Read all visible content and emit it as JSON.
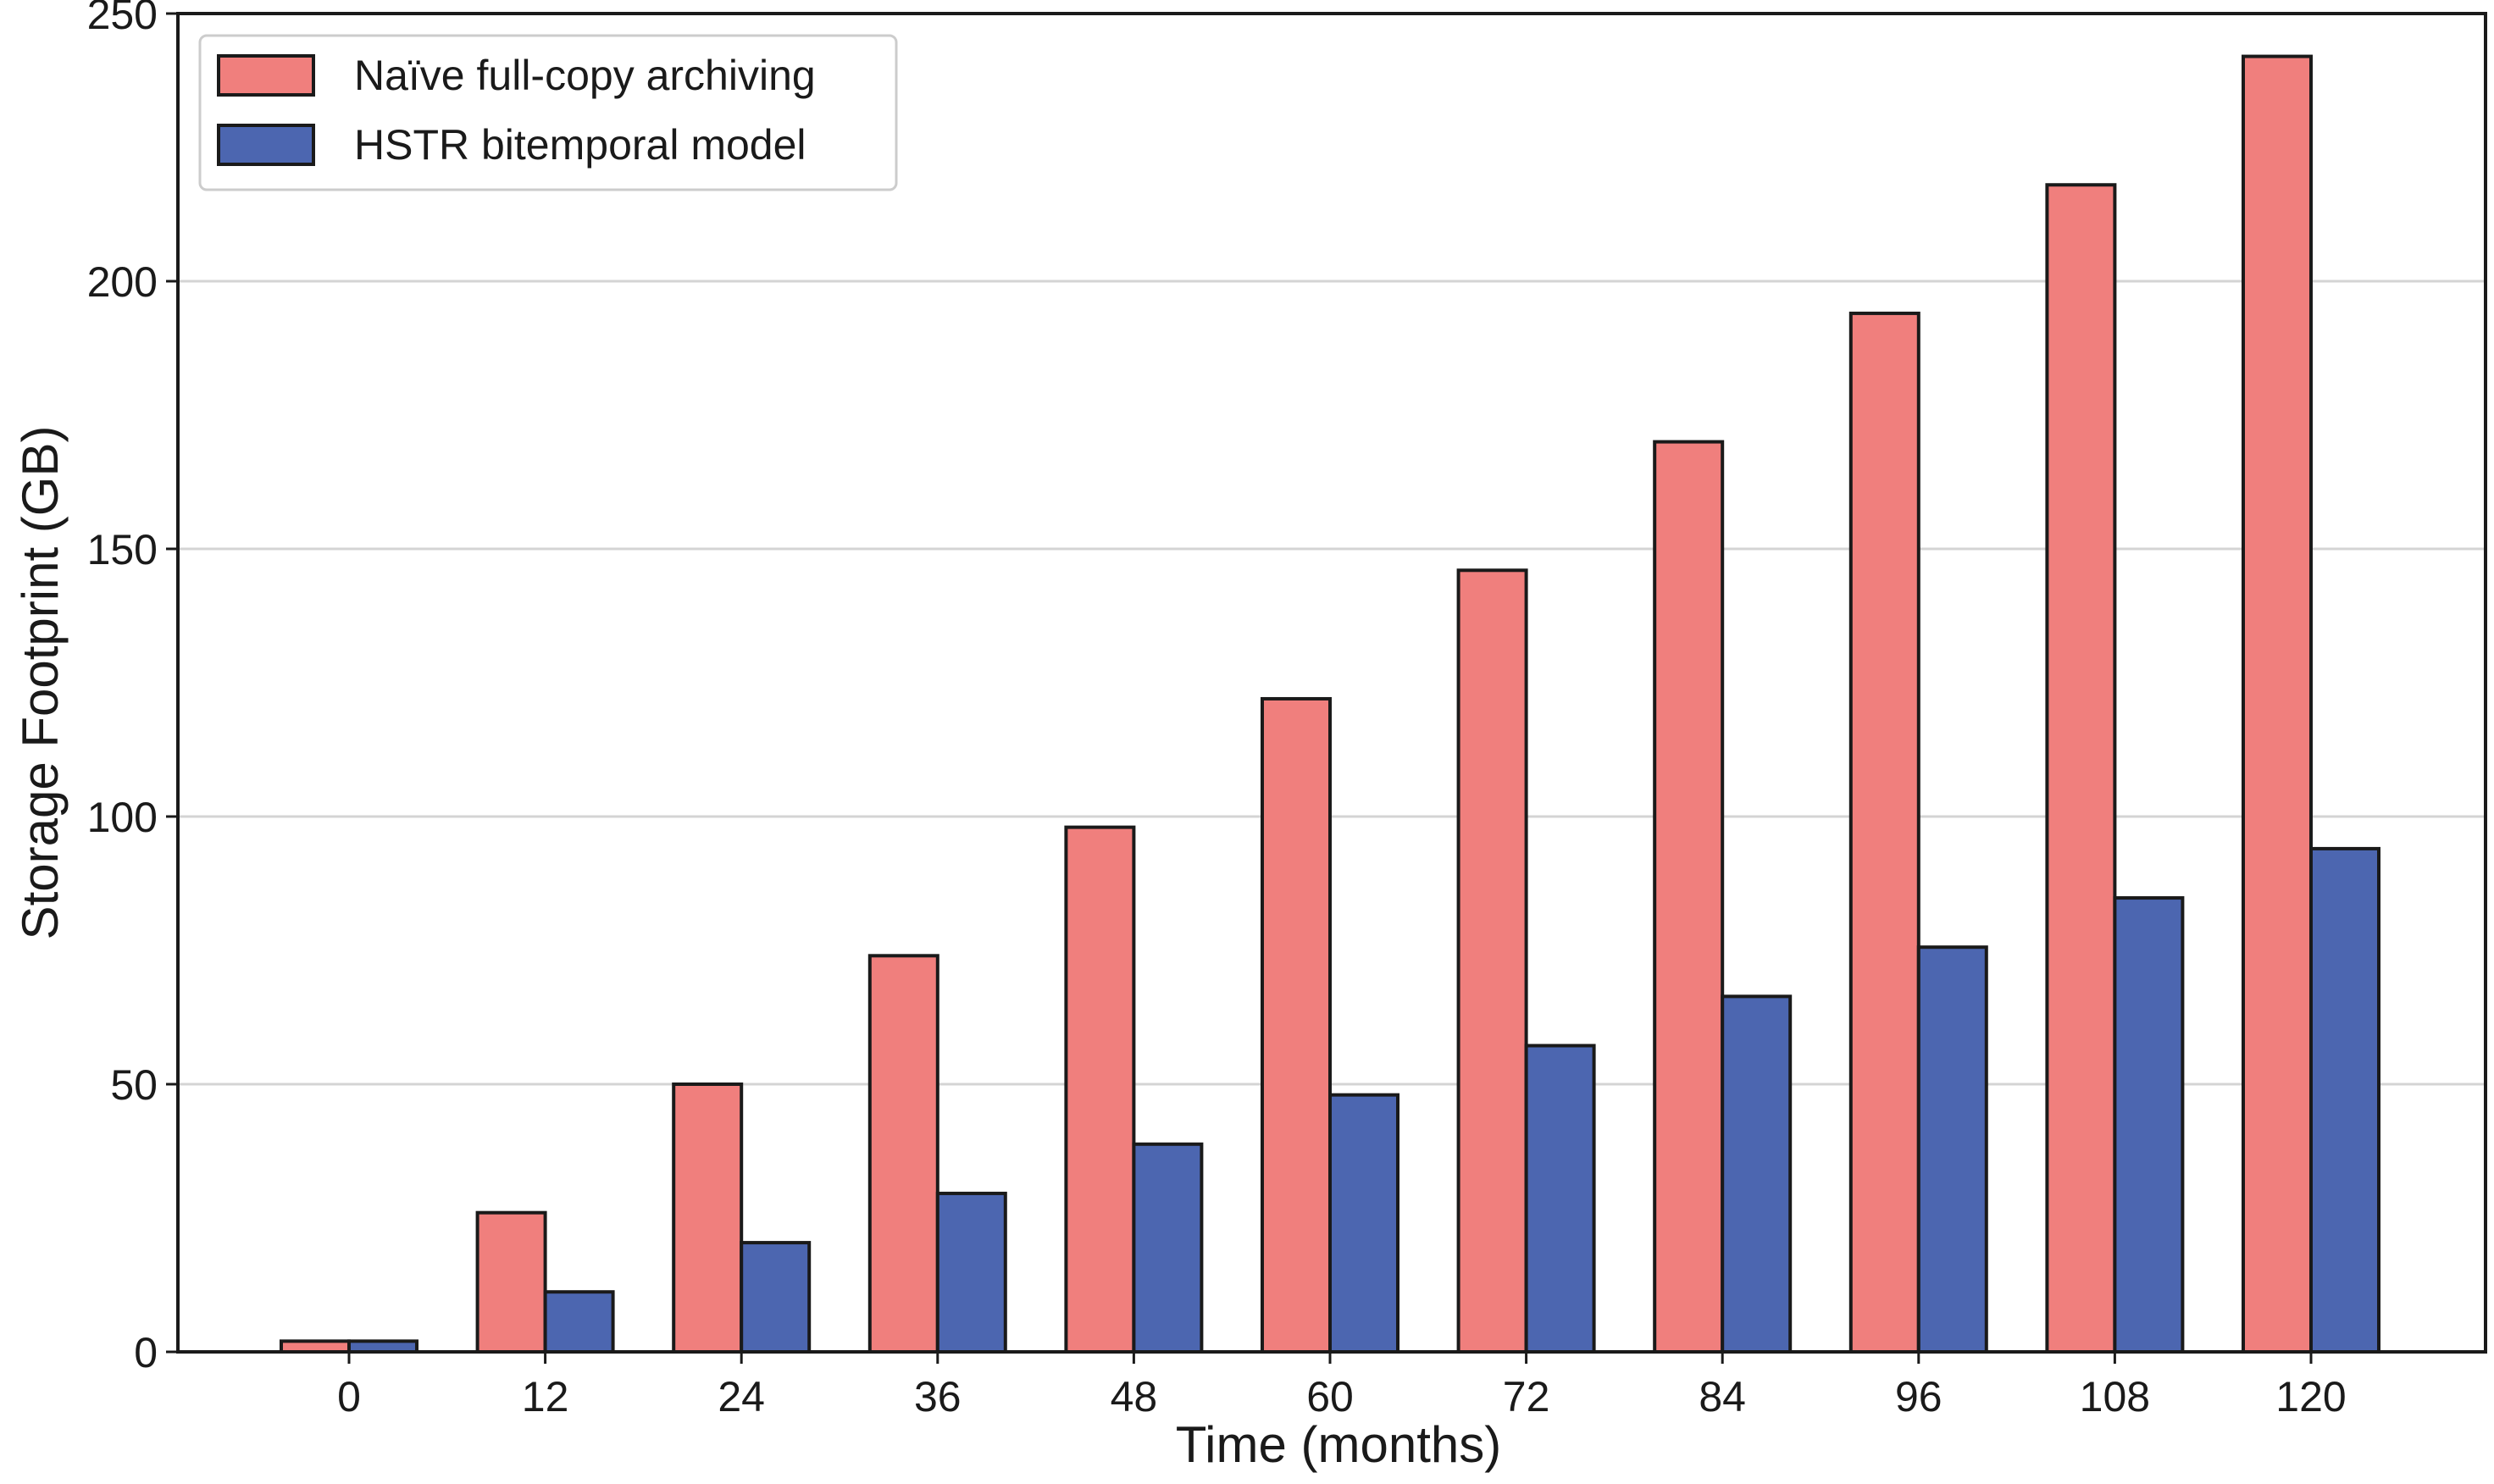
{
  "chart_data": {
    "type": "bar",
    "title": "",
    "xlabel": "Time (months)",
    "ylabel": "Storage Footprint (GB)",
    "categories": [
      "0",
      "12",
      "24",
      "36",
      "48",
      "60",
      "72",
      "84",
      "96",
      "108",
      "120"
    ],
    "series": [
      {
        "name": "Naïve full-copy archiving",
        "color": "#f07f7d",
        "values": [
          2,
          26,
          50,
          74,
          98,
          122,
          146,
          170,
          194,
          218,
          242
        ]
      },
      {
        "name": "HSTR bitemporal model",
        "color": "#4c66b0",
        "values": [
          2,
          11.2,
          20.4,
          29.6,
          38.8,
          48,
          57.2,
          66.4,
          75.6,
          84.8,
          94
        ]
      }
    ],
    "ylim": [
      0,
      250
    ],
    "yticks": [
      0,
      50,
      100,
      150,
      200,
      250
    ],
    "grid": "horizontal",
    "legend_position": "top-left"
  }
}
